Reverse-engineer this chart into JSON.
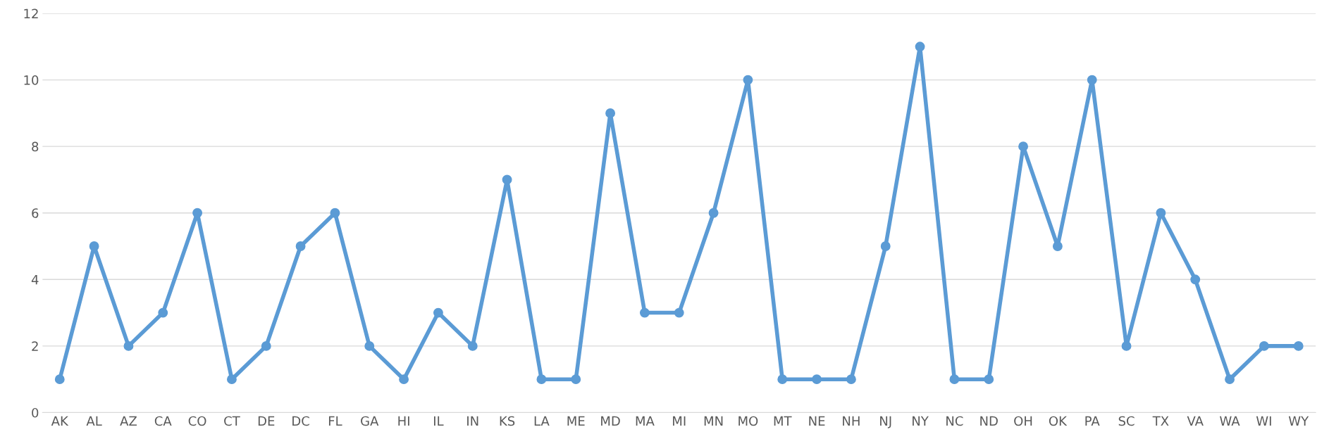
{
  "chart_data": {
    "type": "line",
    "categories": [
      "AK",
      "AL",
      "AZ",
      "CA",
      "CO",
      "CT",
      "DE",
      "DC",
      "FL",
      "GA",
      "HI",
      "IL",
      "IN",
      "KS",
      "LA",
      "ME",
      "MD",
      "MA",
      "MI",
      "MN",
      "MO",
      "MT",
      "NE",
      "NH",
      "NJ",
      "NY",
      "NC",
      "ND",
      "OH",
      "OK",
      "PA",
      "SC",
      "TX",
      "VA",
      "WA",
      "WI",
      "WY"
    ],
    "series": [
      {
        "color": "#5b9bd5",
        "values": [
          1,
          5,
          2,
          3,
          6,
          1,
          2,
          5,
          6,
          2,
          1,
          3,
          2,
          7,
          1,
          1,
          9,
          3,
          3,
          6,
          10,
          1,
          1,
          1,
          5,
          11,
          1,
          1,
          8,
          5,
          10,
          2,
          6,
          4,
          1,
          2,
          2
        ]
      }
    ],
    "ylim": [
      0,
      12
    ],
    "yticks": [
      0,
      2,
      4,
      6,
      8,
      10,
      12
    ],
    "grid": "y",
    "marker": "circle",
    "line_style": "solid",
    "legend": false
  }
}
